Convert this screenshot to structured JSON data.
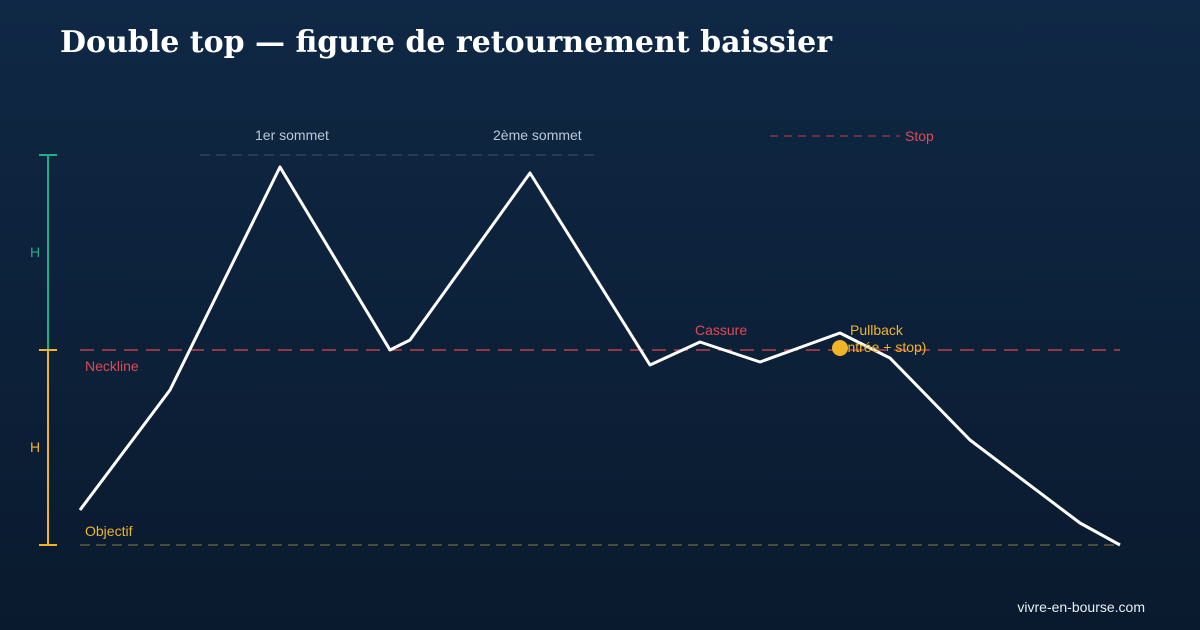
{
  "header": {
    "title": "Double top — figure de retournement baissier"
  },
  "labels": {
    "peak1": "1er sommet",
    "peak2": "2ème sommet",
    "stop": "Stop",
    "neckline": "Neckline",
    "target": "Objectif",
    "breakout": "Cassure",
    "pullback": "Pullback",
    "pullback_note": "(entrée + stop)",
    "height_top": "H",
    "height_bottom": "H"
  },
  "footer": {
    "site": "vivre-en-bourse.com"
  }
}
